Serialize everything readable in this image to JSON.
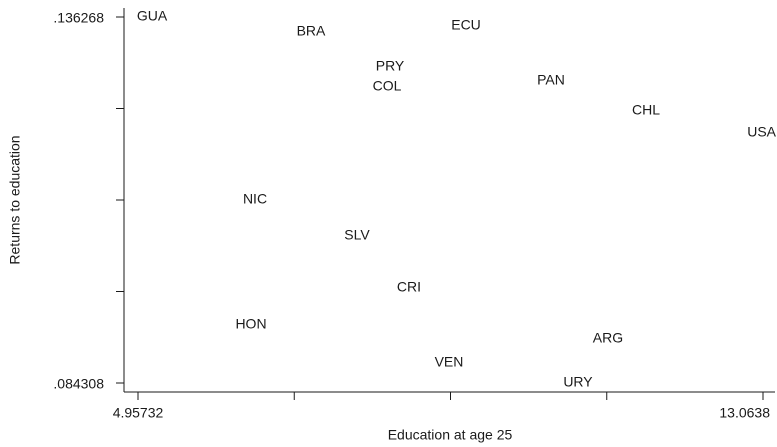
{
  "chart_data": {
    "type": "scatter",
    "xlabel": "Education at age 25",
    "ylabel": "Returns to education",
    "labels": [
      "GUA",
      "BRA",
      "ECU",
      "PRY",
      "COL",
      "PAN",
      "CHL",
      "USA",
      "NIC",
      "SLV",
      "CRI",
      "HON",
      "ARG",
      "VEN",
      "URY"
    ],
    "x": [
      5.139,
      7.201,
      9.212,
      8.226,
      8.187,
      10.314,
      11.546,
      13.05,
      6.475,
      7.798,
      8.472,
      6.423,
      11.053,
      8.991,
      10.664
    ],
    "y": [
      0.13627,
      0.13414,
      0.13499,
      0.12917,
      0.12633,
      0.12718,
      0.12292,
      0.1198,
      0.11029,
      0.10518,
      0.0978,
      0.09254,
      0.09056,
      0.08715,
      0.08431
    ],
    "xlim": [
      4.95732,
      13.0638
    ],
    "ylim": [
      0.084308,
      0.136268
    ],
    "xticks": [
      {
        "value": 4.95732,
        "label": "4.95732"
      },
      {
        "value": 13.0638,
        "label": "13.0638"
      }
    ],
    "xminor_ticks": [
      6.98394,
      9.01056,
      11.03718
    ],
    "yticks": [
      {
        "value": 0.084308,
        "label": ".084308"
      },
      {
        "value": 0.136268,
        "label": ".136268"
      }
    ],
    "yminor_ticks": [
      0.097298,
      0.110288,
      0.123278
    ],
    "color": "#1a1a1a"
  }
}
